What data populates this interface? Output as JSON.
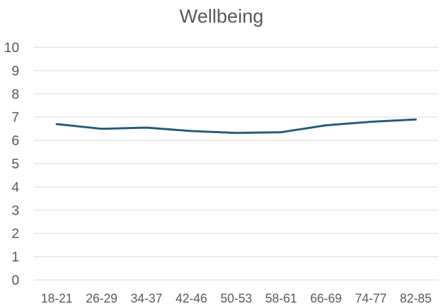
{
  "chart_data": {
    "type": "line",
    "title": "Wellbeing",
    "xlabel": "",
    "ylabel": "",
    "categories": [
      "18-21",
      "26-29",
      "34-37",
      "42-46",
      "50-53",
      "58-61",
      "66-69",
      "74-77",
      "82-85"
    ],
    "series": [
      {
        "values": [
          6.7,
          6.5,
          6.55,
          6.4,
          6.32,
          6.35,
          6.65,
          6.8,
          6.9
        ],
        "color": "#1f5c7a"
      }
    ],
    "ylim": [
      0,
      10
    ],
    "yticks": [
      "0",
      "1",
      "2",
      "3",
      "4",
      "5",
      "6",
      "7",
      "8",
      "9",
      "10"
    ],
    "grid": true,
    "legend": "none",
    "gridline_color": "#d9d9d9"
  }
}
